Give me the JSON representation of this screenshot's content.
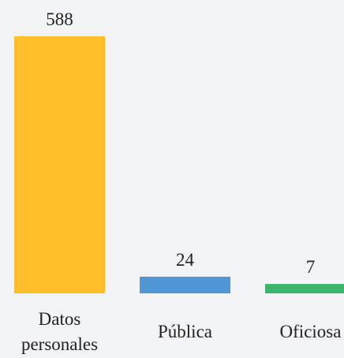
{
  "chart_data": {
    "type": "bar",
    "categories": [
      "Datos personales",
      "Pública",
      "Oficiosa"
    ],
    "values": [
      588,
      24,
      7
    ],
    "colors": [
      "#fdbe2a",
      "#4f97d4",
      "#3bb56b"
    ]
  }
}
